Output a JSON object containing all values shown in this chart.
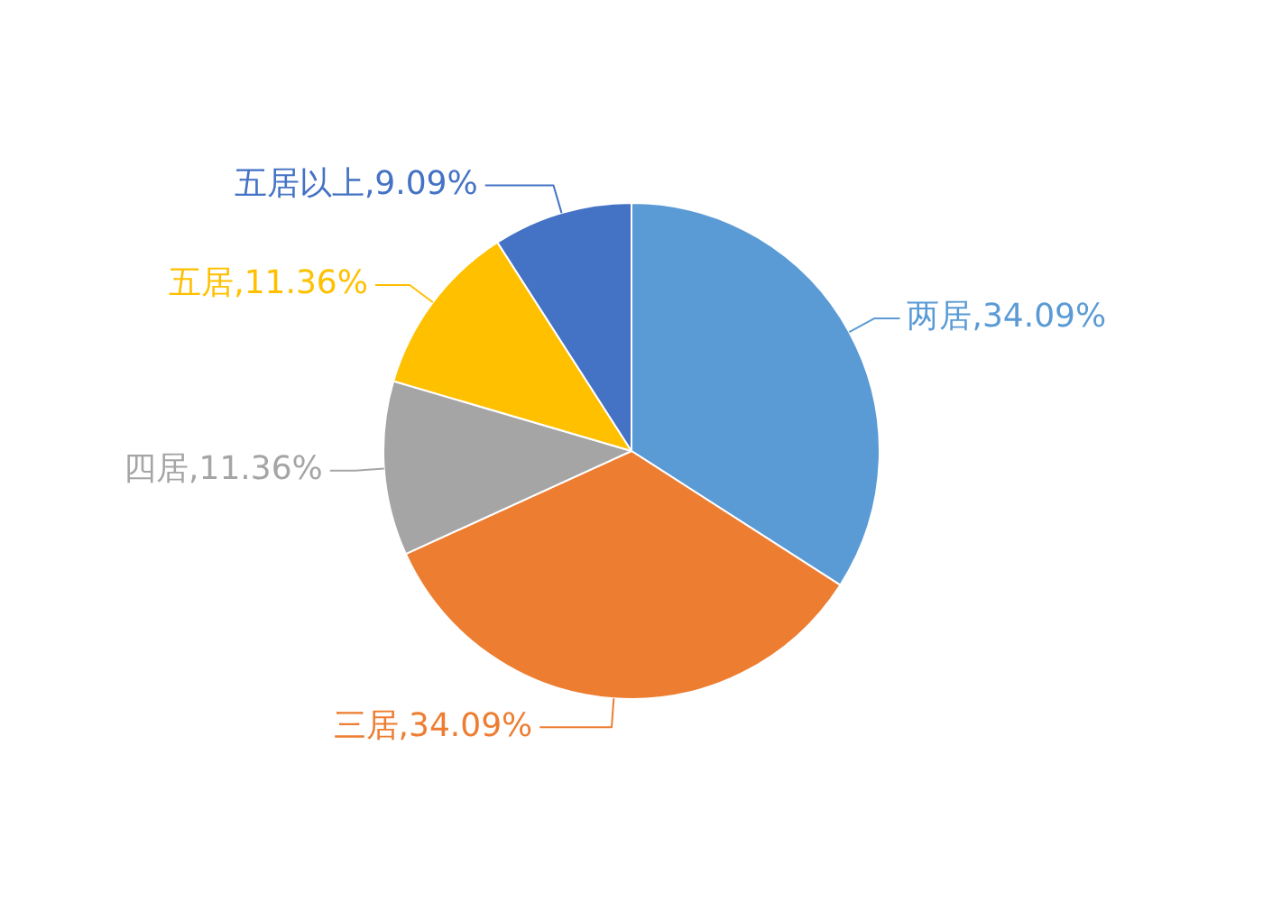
{
  "chart_data": {
    "type": "pie",
    "categories": [
      "两居",
      "三居",
      "四居",
      "五居",
      "五居以上"
    ],
    "values": [
      34.09,
      34.09,
      11.36,
      11.36,
      9.09
    ],
    "colors": [
      "#5b9bd5",
      "#ed7d31",
      "#a5a5a5",
      "#ffc000",
      "#4472c4"
    ],
    "value_labels": [
      "34.09%",
      "34.09%",
      "11.36%",
      "11.36%",
      "9.09%"
    ]
  }
}
